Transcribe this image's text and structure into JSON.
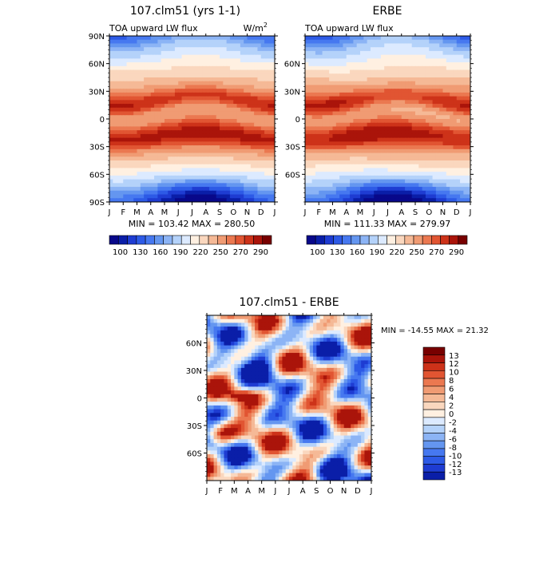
{
  "chart_data": [
    {
      "type": "heatmap",
      "title": "107.clm51 (yrs 1-1)",
      "subtitle_left": "TOA upward LW flux",
      "subtitle_right": "W/m",
      "subtitle_right_sup": "2",
      "x_ticks": [
        "J",
        "F",
        "M",
        "A",
        "M",
        "J",
        "J",
        "A",
        "S",
        "O",
        "N",
        "D",
        "J"
      ],
      "y_ticks": [
        "90N",
        "60N",
        "30N",
        "0",
        "30S",
        "60S",
        "90S"
      ],
      "stats": "MIN = 103.42 MAX = 280.50",
      "z_min": 103.42,
      "z_max": 280.5,
      "colorbar_labels": [
        "100",
        "130",
        "160",
        "190",
        "220",
        "250",
        "270",
        "290"
      ],
      "colors": [
        "#08088a",
        "#0a1ea8",
        "#1e3cd2",
        "#2d5ae6",
        "#4678f0",
        "#6496f0",
        "#8cb4f5",
        "#b4d2fa",
        "#dceaff",
        "#fff0e1",
        "#fad7be",
        "#f5b996",
        "#f09b73",
        "#eb7850",
        "#e15532",
        "#cd3219",
        "#aa140a",
        "#780000"
      ]
    },
    {
      "type": "heatmap",
      "title": "ERBE",
      "subtitle_left": "TOA upward LW flux",
      "x_ticks": [
        "J",
        "F",
        "M",
        "A",
        "M",
        "J",
        "J",
        "A",
        "S",
        "O",
        "N",
        "D",
        "J"
      ],
      "y_ticks": [
        "60N",
        "30N",
        "0",
        "30S",
        "60S"
      ],
      "stats": "MIN = 111.33 MAX = 279.97",
      "z_min": 111.33,
      "z_max": 279.97,
      "colorbar_labels": [
        "100",
        "130",
        "160",
        "190",
        "220",
        "250",
        "270",
        "290"
      ]
    },
    {
      "type": "heatmap",
      "title": "107.clm51 - ERBE",
      "x_ticks": [
        "J",
        "F",
        "M",
        "A",
        "M",
        "J",
        "J",
        "A",
        "S",
        "O",
        "N",
        "D",
        "J"
      ],
      "y_ticks": [
        "60N",
        "30N",
        "0",
        "30S",
        "60S"
      ],
      "stats": "MIN = -14.55 MAX =  21.32",
      "z_min": -14.55,
      "z_max": 21.32,
      "colorbar_labels": [
        "13",
        "12",
        "10",
        "8",
        "6",
        "4",
        "2",
        "0",
        "-2",
        "-4",
        "-6",
        "-8",
        "-10",
        "-12",
        "-13"
      ],
      "colors": [
        "#780000",
        "#aa140a",
        "#cd3219",
        "#e15532",
        "#eb7850",
        "#f09b73",
        "#f5b996",
        "#fad7be",
        "#fff0e1",
        "#dceaff",
        "#b4d2fa",
        "#8cb4f5",
        "#6496f0",
        "#4678f0",
        "#2d5ae6",
        "#1e3cd2",
        "#0a1ea8"
      ]
    }
  ]
}
